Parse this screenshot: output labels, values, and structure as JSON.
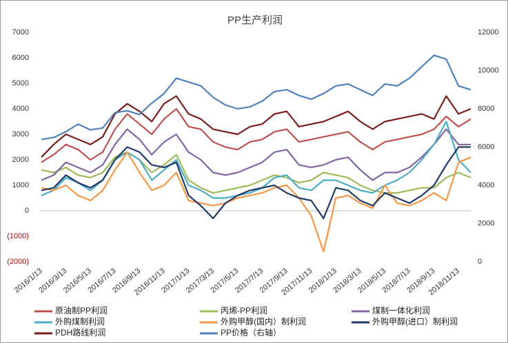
{
  "chart_data": {
    "type": "line",
    "title": "PP生产利润",
    "categories": [
      "2016/1/13",
      null,
      "2016/3/13",
      null,
      "2016/5/13",
      null,
      "2016/7/13",
      null,
      "2016/9/13",
      null,
      "2016/11/13",
      null,
      "2017/1/13",
      null,
      "2017/3/13",
      null,
      "2017/5/13",
      null,
      "2017/7/13",
      null,
      "2017/9/13",
      null,
      "2017/11/13",
      null,
      "2018/1/13",
      null,
      "2018/3/13",
      null,
      "2018/5/13",
      null,
      "2018/7/13",
      null,
      "2018/9/13",
      null,
      "2018/11/13",
      null
    ],
    "ylim": [
      -2000,
      7000
    ],
    "yticks": [
      {
        "value": -2000,
        "label": "(2000)"
      },
      {
        "value": -1000,
        "label": "(1000)"
      },
      0,
      1000,
      2000,
      3000,
      4000,
      5000,
      6000,
      7000
    ],
    "negative_tick_color": "#c00000",
    "y2lim": [
      0,
      12000
    ],
    "y2ticks": [
      0,
      2000,
      4000,
      6000,
      8000,
      10000,
      12000
    ],
    "series": [
      {
        "name": "原油制PP利润",
        "color": "#c0504d",
        "values": [
          1900,
          2200,
          2600,
          2400,
          2000,
          2300,
          3200,
          3800,
          3400,
          3000,
          3600,
          4000,
          3300,
          3200,
          2700,
          2500,
          2400,
          2700,
          2800,
          3100,
          3200,
          2700,
          2800,
          2900,
          3000,
          3100,
          2700,
          2400,
          2700,
          2800,
          2900,
          3000,
          3200,
          3700,
          3300,
          3600
        ]
      },
      {
        "name": "丙烯-PP利润",
        "color": "#9bbb59",
        "values": [
          1600,
          1500,
          1700,
          1400,
          1300,
          1500,
          2100,
          2300,
          2000,
          1500,
          1800,
          2200,
          1200,
          900,
          700,
          800,
          900,
          1000,
          1200,
          1400,
          1300,
          1100,
          1200,
          1500,
          1400,
          1300,
          1000,
          800,
          700,
          700,
          800,
          900,
          900,
          1300,
          1500,
          1300
        ]
      },
      {
        "name": "煤制一体化利润",
        "color": "#8064a2",
        "values": [
          1200,
          1400,
          1900,
          1700,
          1500,
          1800,
          2600,
          3200,
          2800,
          2200,
          2700,
          3000,
          2300,
          2000,
          1500,
          1400,
          1500,
          1700,
          1900,
          2300,
          2400,
          1800,
          1700,
          1800,
          2000,
          2100,
          1600,
          1200,
          1500,
          1500,
          1700,
          2100,
          2600,
          3200,
          2600,
          2600
        ]
      },
      {
        "name": "外购煤制利润",
        "color": "#4bacc6",
        "values": [
          600,
          800,
          1300,
          1100,
          800,
          1200,
          2000,
          2300,
          2000,
          1200,
          1600,
          2000,
          1000,
          800,
          500,
          500,
          600,
          700,
          900,
          1300,
          1400,
          900,
          800,
          1200,
          1200,
          1000,
          800,
          700,
          1000,
          1200,
          1500,
          2000,
          2600,
          3500,
          2000,
          1500
        ]
      },
      {
        "name": "外购甲醇(国内）制利润",
        "color": "#f79646",
        "values": [
          900,
          800,
          1000,
          600,
          400,
          800,
          1600,
          2300,
          1500,
          800,
          1000,
          1500,
          400,
          300,
          200,
          300,
          500,
          600,
          700,
          900,
          1000,
          500,
          -200,
          -1600,
          500,
          600,
          300,
          100,
          1000,
          300,
          200,
          400,
          700,
          400,
          1900,
          2100
        ]
      },
      {
        "name": "外购甲醇(进口）制利润",
        "color": "#1f3864",
        "values": [
          800,
          900,
          1400,
          1100,
          900,
          1200,
          2000,
          2500,
          2300,
          1800,
          1700,
          1900,
          600,
          200,
          -300,
          300,
          600,
          800,
          900,
          1000,
          700,
          500,
          400,
          -300,
          900,
          800,
          400,
          200,
          700,
          500,
          300,
          600,
          1000,
          1800,
          2500,
          2500
        ]
      },
      {
        "name": "PDH路线利润",
        "color": "#7b1c1c",
        "values": [
          2100,
          2600,
          3000,
          2800,
          2600,
          2900,
          3800,
          4200,
          3900,
          3500,
          4200,
          4500,
          3800,
          3600,
          3200,
          3100,
          3000,
          3300,
          3400,
          3800,
          3900,
          3300,
          3400,
          3500,
          3700,
          3900,
          3500,
          3200,
          3500,
          3600,
          3700,
          3800,
          3600,
          4500,
          3800,
          4000
        ]
      },
      {
        "name": "PP价格（右轴）",
        "color": "#4f81bd",
        "axis": "y2",
        "values": [
          6400,
          6500,
          6800,
          7200,
          6900,
          7000,
          7800,
          7900,
          7700,
          8300,
          8800,
          9600,
          9400,
          9200,
          8600,
          8200,
          8000,
          8100,
          8400,
          8900,
          9000,
          8700,
          8500,
          8800,
          9200,
          9300,
          9000,
          8700,
          9300,
          9200,
          9600,
          10200,
          10800,
          10600,
          9200,
          9000
        ]
      }
    ]
  }
}
